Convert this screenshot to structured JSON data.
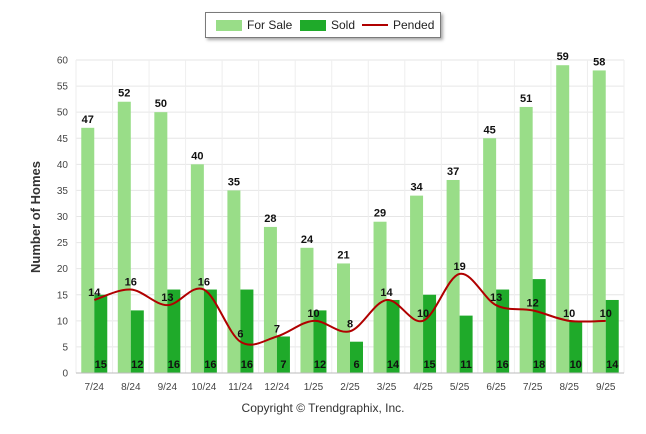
{
  "chart_data": {
    "type": "bar",
    "categories": [
      "7/24",
      "8/24",
      "9/24",
      "10/24",
      "11/24",
      "12/24",
      "1/25",
      "2/25",
      "3/25",
      "4/25",
      "5/25",
      "6/25",
      "7/25",
      "8/25",
      "9/25"
    ],
    "series": [
      {
        "name": "For Sale",
        "type": "bar",
        "color": "#99dd88",
        "values": [
          47,
          52,
          50,
          40,
          35,
          28,
          24,
          21,
          29,
          34,
          37,
          45,
          51,
          59,
          58
        ]
      },
      {
        "name": "Sold",
        "type": "bar",
        "color": "#1faa2a",
        "values": [
          15,
          12,
          16,
          16,
          16,
          7,
          12,
          6,
          14,
          15,
          11,
          16,
          18,
          10,
          14
        ]
      },
      {
        "name": "Pended",
        "type": "line",
        "color": "#b00000",
        "values": [
          14,
          16,
          13,
          16,
          6,
          7,
          10,
          8,
          14,
          10,
          19,
          13,
          12,
          10,
          10
        ]
      }
    ],
    "xlabel": "",
    "ylabel": "Number of Homes",
    "ylim": [
      0,
      60
    ],
    "yticks": [
      0,
      5,
      10,
      15,
      20,
      25,
      30,
      35,
      40,
      45,
      50,
      55,
      60
    ],
    "grid": true,
    "legend_position": "top-center"
  },
  "legend": {
    "for_sale": "For Sale",
    "sold": "Sold",
    "pended": "Pended"
  },
  "footer": "Copyright © Trendgraphix, Inc."
}
